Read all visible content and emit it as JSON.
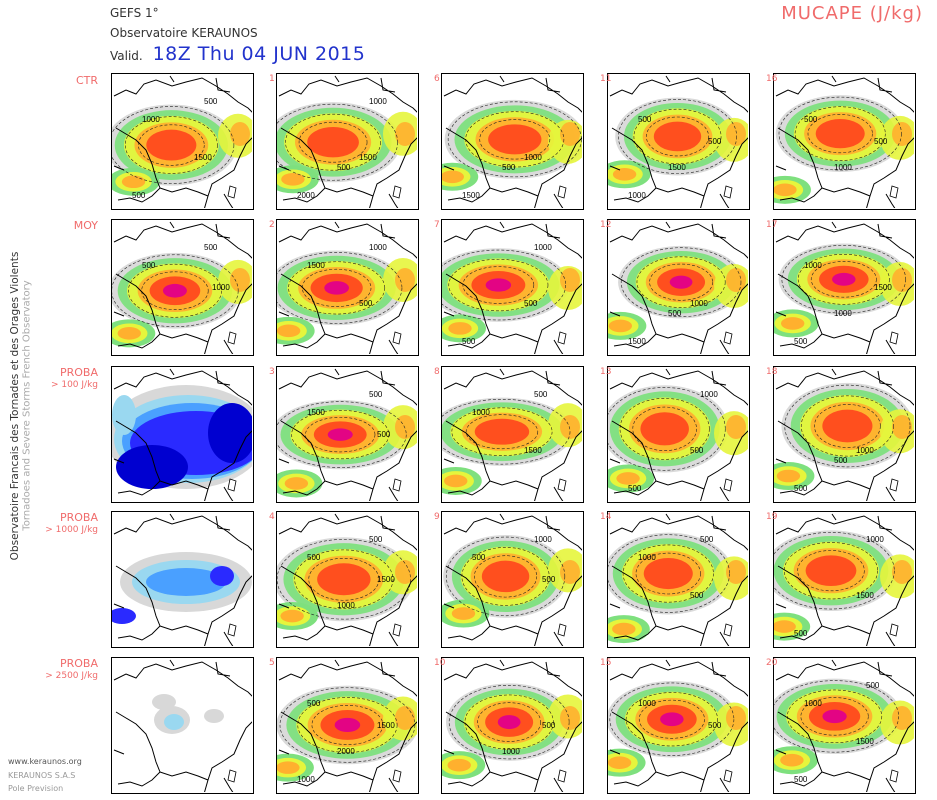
{
  "header": {
    "model": "GEFS 1°",
    "org": "Observatoire KERAUNOS",
    "valid_label": "Valid.",
    "valid_date": "18Z Thu 04 JUN 2015",
    "parameter": "MUCAPE (J/kg)"
  },
  "side_text": {
    "line1": "Observatoire Francais des Tornades et des Orages Violents",
    "line2": "Tornadoes and Severe Storms French Observatory"
  },
  "footer": {
    "website": "www.keraunos.org",
    "company": "KERAUNOS S.A.S",
    "service": "Pole Prevision"
  },
  "rows": [
    {
      "label": "CTR",
      "sublabel": ""
    },
    {
      "label": "MOY",
      "sublabel": ""
    },
    {
      "label": "PROBA",
      "sublabel": "> 100 J/kg"
    },
    {
      "label": "PROBA",
      "sublabel": "> 1000 J/kg"
    },
    {
      "label": "PROBA",
      "sublabel": "> 2500 J/kg"
    }
  ],
  "panels": [
    {
      "row": 0,
      "col": 0,
      "num": "",
      "kind": "cape",
      "labels": [
        "1000",
        "500",
        "1500",
        "500"
      ]
    },
    {
      "row": 0,
      "col": 1,
      "num": "1",
      "kind": "cape",
      "labels": [
        "1000",
        "1500",
        "2000",
        "500"
      ]
    },
    {
      "row": 0,
      "col": 2,
      "num": "6",
      "kind": "cape",
      "labels": [
        "1000",
        "1500",
        "500"
      ]
    },
    {
      "row": 0,
      "col": 3,
      "num": "11",
      "kind": "cape",
      "labels": [
        "1000",
        "1500",
        "500",
        "500"
      ]
    },
    {
      "row": 0,
      "col": 4,
      "num": "16",
      "kind": "cape",
      "labels": [
        "1000",
        "500",
        "500"
      ]
    },
    {
      "row": 1,
      "col": 0,
      "num": "",
      "kind": "cape",
      "labels": [
        "1000",
        "500",
        "500"
      ]
    },
    {
      "row": 1,
      "col": 1,
      "num": "2",
      "kind": "cape",
      "labels": [
        "1500",
        "1000",
        "500"
      ]
    },
    {
      "row": 1,
      "col": 2,
      "num": "7",
      "kind": "cape",
      "labels": [
        "1000",
        "500",
        "500"
      ]
    },
    {
      "row": 1,
      "col": 3,
      "num": "12",
      "kind": "cape",
      "labels": [
        "1000",
        "1500",
        "500"
      ]
    },
    {
      "row": 1,
      "col": 4,
      "num": "17",
      "kind": "cape",
      "labels": [
        "500",
        "1000",
        "1500",
        "1000"
      ]
    },
    {
      "row": 2,
      "col": 0,
      "num": "",
      "kind": "proba",
      "labels": []
    },
    {
      "row": 2,
      "col": 1,
      "num": "3",
      "kind": "cape",
      "labels": [
        "500",
        "1500",
        "500"
      ]
    },
    {
      "row": 2,
      "col": 2,
      "num": "8",
      "kind": "cape",
      "labels": [
        "1000",
        "500",
        "1500"
      ]
    },
    {
      "row": 2,
      "col": 3,
      "num": "13",
      "kind": "cape",
      "labels": [
        "1000",
        "500",
        "500"
      ]
    },
    {
      "row": 2,
      "col": 4,
      "num": "18",
      "kind": "cape",
      "labels": [
        "1000",
        "500",
        "500"
      ]
    },
    {
      "row": 3,
      "col": 0,
      "num": "",
      "kind": "proba1000",
      "labels": []
    },
    {
      "row": 3,
      "col": 1,
      "num": "4",
      "kind": "cape",
      "labels": [
        "1000",
        "1500",
        "500",
        "500"
      ]
    },
    {
      "row": 3,
      "col": 2,
      "num": "9",
      "kind": "cape",
      "labels": [
        "500",
        "500",
        "1000"
      ]
    },
    {
      "row": 3,
      "col": 3,
      "num": "14",
      "kind": "cape",
      "labels": [
        "1000",
        "500",
        "500"
      ]
    },
    {
      "row": 3,
      "col": 4,
      "num": "19",
      "kind": "cape",
      "labels": [
        "1000",
        "1500",
        "500"
      ]
    },
    {
      "row": 4,
      "col": 0,
      "num": "",
      "kind": "proba2500",
      "labels": []
    },
    {
      "row": 4,
      "col": 1,
      "num": "5",
      "kind": "cape",
      "labels": [
        "1000",
        "2000",
        "1500",
        "500"
      ]
    },
    {
      "row": 4,
      "col": 2,
      "num": "10",
      "kind": "cape",
      "labels": [
        "1000",
        "500"
      ]
    },
    {
      "row": 4,
      "col": 3,
      "num": "15",
      "kind": "cape",
      "labels": [
        "500",
        "1000"
      ]
    },
    {
      "row": 4,
      "col": 4,
      "num": "20",
      "kind": "cape",
      "labels": [
        "1000",
        "500",
        "1500",
        "500"
      ]
    }
  ],
  "colors": {
    "title_red": "#f06b6b",
    "valid_blue": "#2233cc",
    "cape_scale": [
      "#d8d8d8",
      "#7ee07e",
      "#e6f53c",
      "#ffb02e",
      "#ff4a1e",
      "#e2008a"
    ],
    "proba_scale": [
      "#d8d8d8",
      "#9ad8f0",
      "#4aa0ff",
      "#2a2aff",
      "#0000d0"
    ]
  }
}
